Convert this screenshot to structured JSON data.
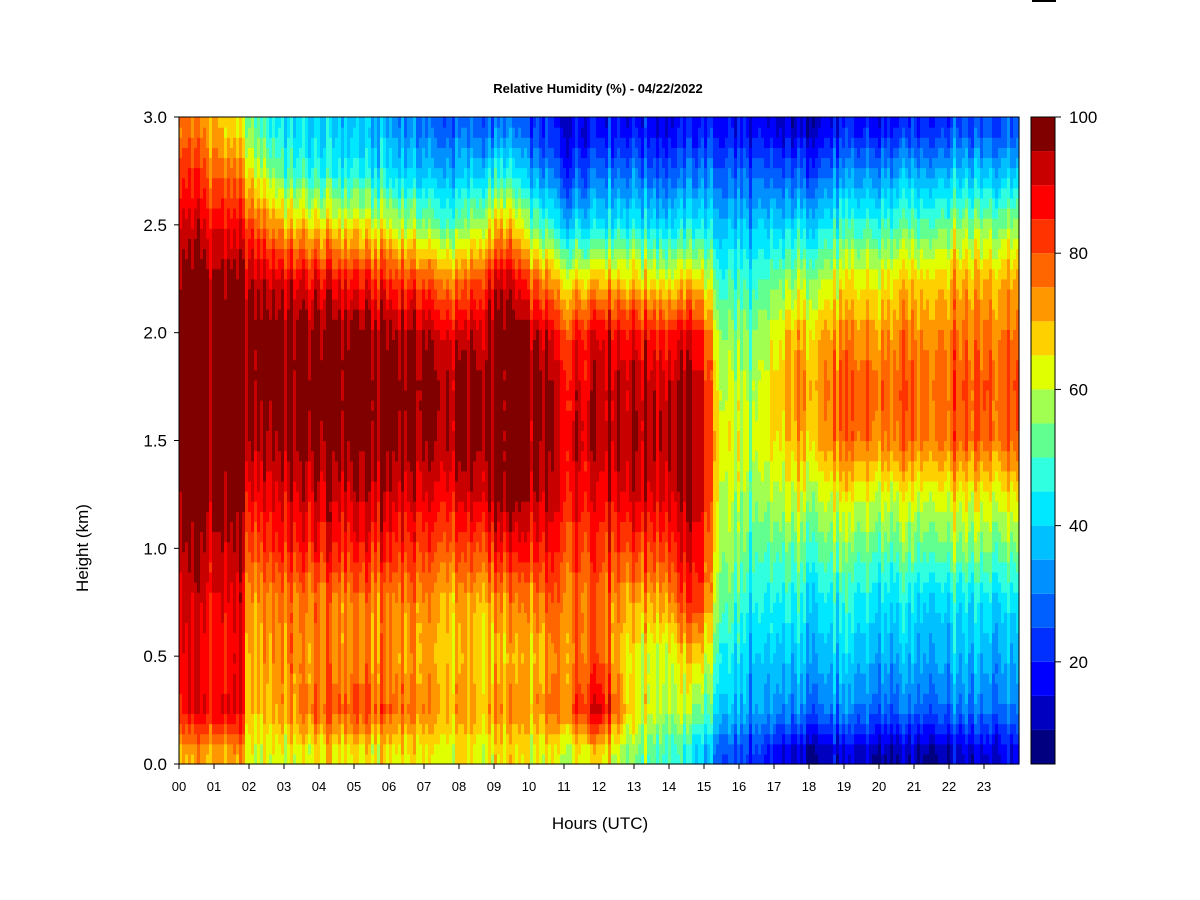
{
  "chart_data": {
    "type": "heatmap",
    "title": "Relative Humidity (%) - 04/22/2022",
    "xlabel": "Hours (UTC)",
    "ylabel": "Height (km)",
    "x_ticks": [
      "00",
      "01",
      "02",
      "03",
      "04",
      "05",
      "06",
      "07",
      "08",
      "09",
      "10",
      "11",
      "12",
      "13",
      "14",
      "15",
      "16",
      "17",
      "18",
      "19",
      "20",
      "21",
      "22",
      "23"
    ],
    "y_ticks": [
      "0.0",
      "0.5",
      "1.0",
      "1.5",
      "2.0",
      "2.5",
      "3.0"
    ],
    "xlim": [
      0,
      24
    ],
    "ylim": [
      0,
      3.0
    ],
    "colorbar": {
      "ticks": [
        "20",
        "40",
        "60",
        "80",
        "100"
      ],
      "range": [
        5,
        100
      ],
      "levels": [
        5,
        10,
        15,
        20,
        25,
        30,
        35,
        40,
        45,
        50,
        55,
        60,
        65,
        70,
        75,
        80,
        85,
        90,
        95,
        100
      ],
      "colors": [
        "#000080",
        "#0000C0",
        "#0000FF",
        "#0030FF",
        "#0060FF",
        "#0090FF",
        "#00C0FF",
        "#00E8FF",
        "#30FFE0",
        "#60FF90",
        "#A0FF50",
        "#E0FF00",
        "#FFD000",
        "#FF9800",
        "#FF6600",
        "#FF3300",
        "#FF0000",
        "#C80000",
        "#800000"
      ]
    },
    "height_levels_km": [
      0.05,
      0.25,
      0.5,
      0.75,
      1.0,
      1.25,
      1.5,
      1.75,
      2.0,
      2.25,
      2.5,
      2.75,
      2.95
    ],
    "profiles": [
      {
        "hour": 0.0,
        "rh": [
          70,
          88,
          90,
          92,
          95,
          98,
          100,
          100,
          100,
          98,
          92,
          85,
          78
        ]
      },
      {
        "hour": 1.0,
        "rh": [
          72,
          90,
          88,
          90,
          95,
          98,
          100,
          100,
          100,
          98,
          90,
          80,
          72
        ]
      },
      {
        "hour": 1.8,
        "rh": [
          70,
          88,
          86,
          88,
          92,
          96,
          100,
          100,
          100,
          95,
          85,
          72,
          62
        ]
      },
      {
        "hour": 2.0,
        "rh": [
          62,
          68,
          70,
          72,
          80,
          88,
          95,
          98,
          100,
          94,
          82,
          65,
          55
        ]
      },
      {
        "hour": 3.0,
        "rh": [
          62,
          72,
          74,
          75,
          85,
          90,
          96,
          98,
          98,
          90,
          70,
          50,
          42
        ]
      },
      {
        "hour": 4.0,
        "rh": [
          64,
          78,
          74,
          75,
          85,
          92,
          98,
          100,
          98,
          88,
          66,
          45,
          40
        ]
      },
      {
        "hour": 5.0,
        "rh": [
          64,
          80,
          74,
          75,
          85,
          92,
          98,
          100,
          98,
          86,
          64,
          45,
          38
        ]
      },
      {
        "hour": 6.0,
        "rh": [
          64,
          78,
          74,
          75,
          85,
          92,
          98,
          100,
          96,
          84,
          62,
          42,
          35
        ]
      },
      {
        "hour": 7.0,
        "rh": [
          64,
          74,
          72,
          74,
          82,
          90,
          96,
          98,
          95,
          80,
          55,
          38,
          30
        ]
      },
      {
        "hour": 8.0,
        "rh": [
          62,
          70,
          66,
          68,
          78,
          88,
          94,
          95,
          88,
          72,
          50,
          35,
          25
        ]
      },
      {
        "hour": 9.3,
        "rh": [
          64,
          72,
          68,
          72,
          85,
          98,
          100,
          100,
          100,
          92,
          70,
          45,
          30
        ]
      },
      {
        "hour": 10.3,
        "rh": [
          62,
          72,
          68,
          74,
          85,
          92,
          96,
          98,
          92,
          75,
          50,
          32,
          22
        ]
      },
      {
        "hour": 10.9,
        "rh": [
          60,
          75,
          72,
          76,
          82,
          88,
          90,
          88,
          82,
          65,
          40,
          22,
          15
        ]
      },
      {
        "hour": 12.0,
        "rh": [
          68,
          94,
          82,
          80,
          85,
          90,
          96,
          95,
          92,
          70,
          45,
          30,
          20
        ]
      },
      {
        "hour": 13.0,
        "rh": [
          55,
          65,
          64,
          70,
          82,
          92,
          96,
          94,
          88,
          68,
          45,
          30,
          20
        ]
      },
      {
        "hour": 14.0,
        "rh": [
          48,
          58,
          60,
          72,
          82,
          90,
          94,
          92,
          85,
          62,
          40,
          25,
          15
        ]
      },
      {
        "hour": 14.8,
        "rh": [
          42,
          56,
          70,
          86,
          92,
          96,
          98,
          96,
          90,
          68,
          45,
          30,
          20
        ]
      },
      {
        "hour": 15.5,
        "rh": [
          28,
          42,
          48,
          55,
          60,
          62,
          66,
          62,
          58,
          50,
          40,
          30,
          20
        ]
      },
      {
        "hour": 16.5,
        "rh": [
          20,
          32,
          36,
          42,
          48,
          54,
          58,
          56,
          52,
          46,
          36,
          25,
          15
        ]
      },
      {
        "hour": 17.5,
        "rh": [
          12,
          30,
          38,
          44,
          52,
          60,
          68,
          72,
          68,
          56,
          40,
          25,
          12
        ]
      },
      {
        "hour": 19.0,
        "rh": [
          12,
          30,
          38,
          44,
          52,
          62,
          75,
          78,
          72,
          62,
          46,
          30,
          18
        ]
      },
      {
        "hour": 20.5,
        "rh": [
          10,
          28,
          36,
          42,
          52,
          62,
          76,
          78,
          74,
          66,
          50,
          34,
          20
        ]
      },
      {
        "hour": 22.0,
        "rh": [
          12,
          30,
          38,
          42,
          55,
          64,
          78,
          80,
          76,
          70,
          55,
          38,
          25
        ]
      },
      {
        "hour": 23.9,
        "rh": [
          18,
          32,
          38,
          44,
          56,
          66,
          80,
          82,
          78,
          72,
          58,
          40,
          28
        ]
      }
    ]
  }
}
